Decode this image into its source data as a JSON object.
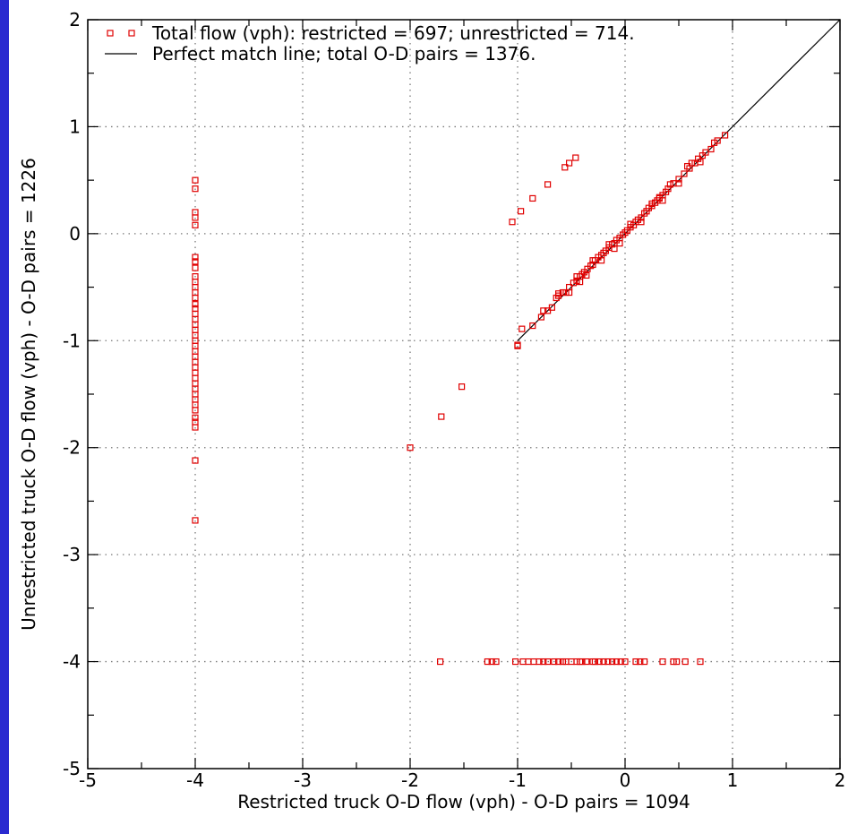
{
  "chart_data": {
    "type": "scatter",
    "xlabel": "Restricted truck O-D flow (vph) - O-D pairs = 1094",
    "ylabel": "Unrestricted truck O-D flow (vph) - O-D pairs = 1226",
    "xlim": [
      -5,
      2
    ],
    "ylim": [
      -5,
      2
    ],
    "xticks": [
      -5,
      -4,
      -3,
      -2,
      -1,
      0,
      1,
      2
    ],
    "yticks": [
      -5,
      -4,
      -3,
      -2,
      -1,
      0,
      1,
      2
    ],
    "grid": true,
    "legend_position": "top-left",
    "legend": [
      "Total flow (vph): restricted = 697; unrestricted = 714.",
      "Perfect match line; total O-D pairs = 1376."
    ],
    "marker_color": "#e00000",
    "line_color": "#000000",
    "line": {
      "x": [
        -1,
        2
      ],
      "y": [
        -1,
        2
      ]
    },
    "points": {
      "x": [
        -4,
        -4,
        -4,
        -4,
        -4,
        -4,
        -4,
        -4,
        -4,
        -4,
        -4,
        -4,
        -4,
        -4,
        -4,
        -4,
        -4,
        -4,
        -4,
        -4,
        -4,
        -4,
        -4,
        -4,
        -4,
        -4,
        -4,
        -4,
        -4,
        -4,
        -4,
        -4,
        -4,
        -4,
        -4,
        -4,
        -4,
        -4,
        -4,
        -1.05,
        -0.97,
        -0.86,
        -0.72,
        -0.56,
        -0.52,
        -0.46,
        -2.0,
        -1.71,
        -1.52,
        -1.0,
        -1.0,
        -0.96,
        -0.86,
        -0.78,
        -0.72,
        -0.68,
        -0.64,
        -0.62,
        -0.58,
        -0.55,
        -0.52,
        -0.48,
        -0.45,
        -0.42,
        -0.4,
        -0.38,
        -0.35,
        -0.32,
        -0.3,
        -0.28,
        -0.25,
        -0.22,
        -0.2,
        -0.18,
        -0.15,
        -0.12,
        -0.1,
        -0.08,
        -0.05,
        -0.02,
        0.0,
        0.02,
        0.05,
        0.08,
        0.1,
        0.12,
        0.15,
        0.18,
        0.2,
        0.22,
        0.25,
        0.28,
        0.3,
        0.32,
        0.35,
        0.38,
        0.4,
        0.45,
        0.5,
        0.55,
        0.6,
        0.65,
        0.68,
        0.72,
        0.75,
        0.8,
        0.83,
        0.86,
        0.93,
        -0.62,
        -0.45,
        -0.3,
        -0.15,
        0.05,
        0.25,
        0.42,
        0.58,
        -0.52,
        -0.36,
        -0.22,
        -0.05,
        0.15,
        0.35,
        0.5,
        0.7,
        -0.76,
        -0.42,
        -0.1,
        0.32,
        0.62,
        -1.72,
        -1.28,
        -1.24,
        -1.2,
        -1.02,
        -0.95,
        -0.9,
        -0.85,
        -0.8,
        -0.76,
        -0.72,
        -0.66,
        -0.62,
        -0.58,
        -0.55,
        -0.5,
        -0.45,
        -0.42,
        -0.4,
        -0.36,
        -0.3,
        -0.28,
        -0.24,
        -0.2,
        -0.16,
        -0.12,
        -0.08,
        -0.04,
        0.0,
        0.1,
        0.14,
        0.18,
        0.35,
        0.45,
        0.48,
        0.56,
        0.7
      ],
      "y": [
        0.5,
        0.42,
        0.2,
        0.15,
        0.08,
        -0.22,
        -0.26,
        -0.32,
        -0.4,
        -0.45,
        -0.5,
        -0.55,
        -0.6,
        -0.66,
        -0.7,
        -0.75,
        -0.8,
        -0.85,
        -0.9,
        -0.95,
        -1.0,
        -1.05,
        -1.1,
        -1.15,
        -1.2,
        -1.25,
        -1.3,
        -1.35,
        -1.4,
        -1.45,
        -1.5,
        -1.55,
        -1.6,
        -1.65,
        -1.72,
        -1.76,
        -1.81,
        -2.12,
        -2.68,
        0.11,
        0.21,
        0.33,
        0.46,
        0.62,
        0.66,
        0.71,
        -2.0,
        -1.71,
        -1.43,
        -1.04,
        -1.05,
        -0.89,
        -0.86,
        -0.78,
        -0.72,
        -0.69,
        -0.6,
        -0.58,
        -0.55,
        -0.55,
        -0.5,
        -0.46,
        -0.44,
        -0.4,
        -0.38,
        -0.36,
        -0.33,
        -0.3,
        -0.29,
        -0.25,
        -0.22,
        -0.2,
        -0.18,
        -0.16,
        -0.13,
        -0.1,
        -0.09,
        -0.06,
        -0.04,
        -0.01,
        0.01,
        0.03,
        0.06,
        0.08,
        0.11,
        0.13,
        0.15,
        0.19,
        0.21,
        0.24,
        0.26,
        0.29,
        0.31,
        0.33,
        0.36,
        0.39,
        0.42,
        0.47,
        0.51,
        0.56,
        0.61,
        0.66,
        0.7,
        0.73,
        0.76,
        0.79,
        0.85,
        0.87,
        0.92,
        -0.56,
        -0.4,
        -0.25,
        -0.1,
        0.09,
        0.28,
        0.46,
        0.63,
        -0.55,
        -0.39,
        -0.25,
        -0.09,
        0.11,
        0.31,
        0.47,
        0.67,
        -0.72,
        -0.45,
        -0.14,
        0.34,
        0.66,
        -4,
        -4,
        -4,
        -4,
        -4,
        -4,
        -4,
        -4,
        -4,
        -4,
        -4,
        -4,
        -4,
        -4,
        -4,
        -4,
        -4,
        -4,
        -4,
        -4,
        -4,
        -4,
        -4,
        -4,
        -4,
        -4,
        -4,
        -4,
        -4,
        -4,
        -4,
        -4,
        -4,
        -4,
        -4,
        -4,
        -4
      ]
    }
  }
}
